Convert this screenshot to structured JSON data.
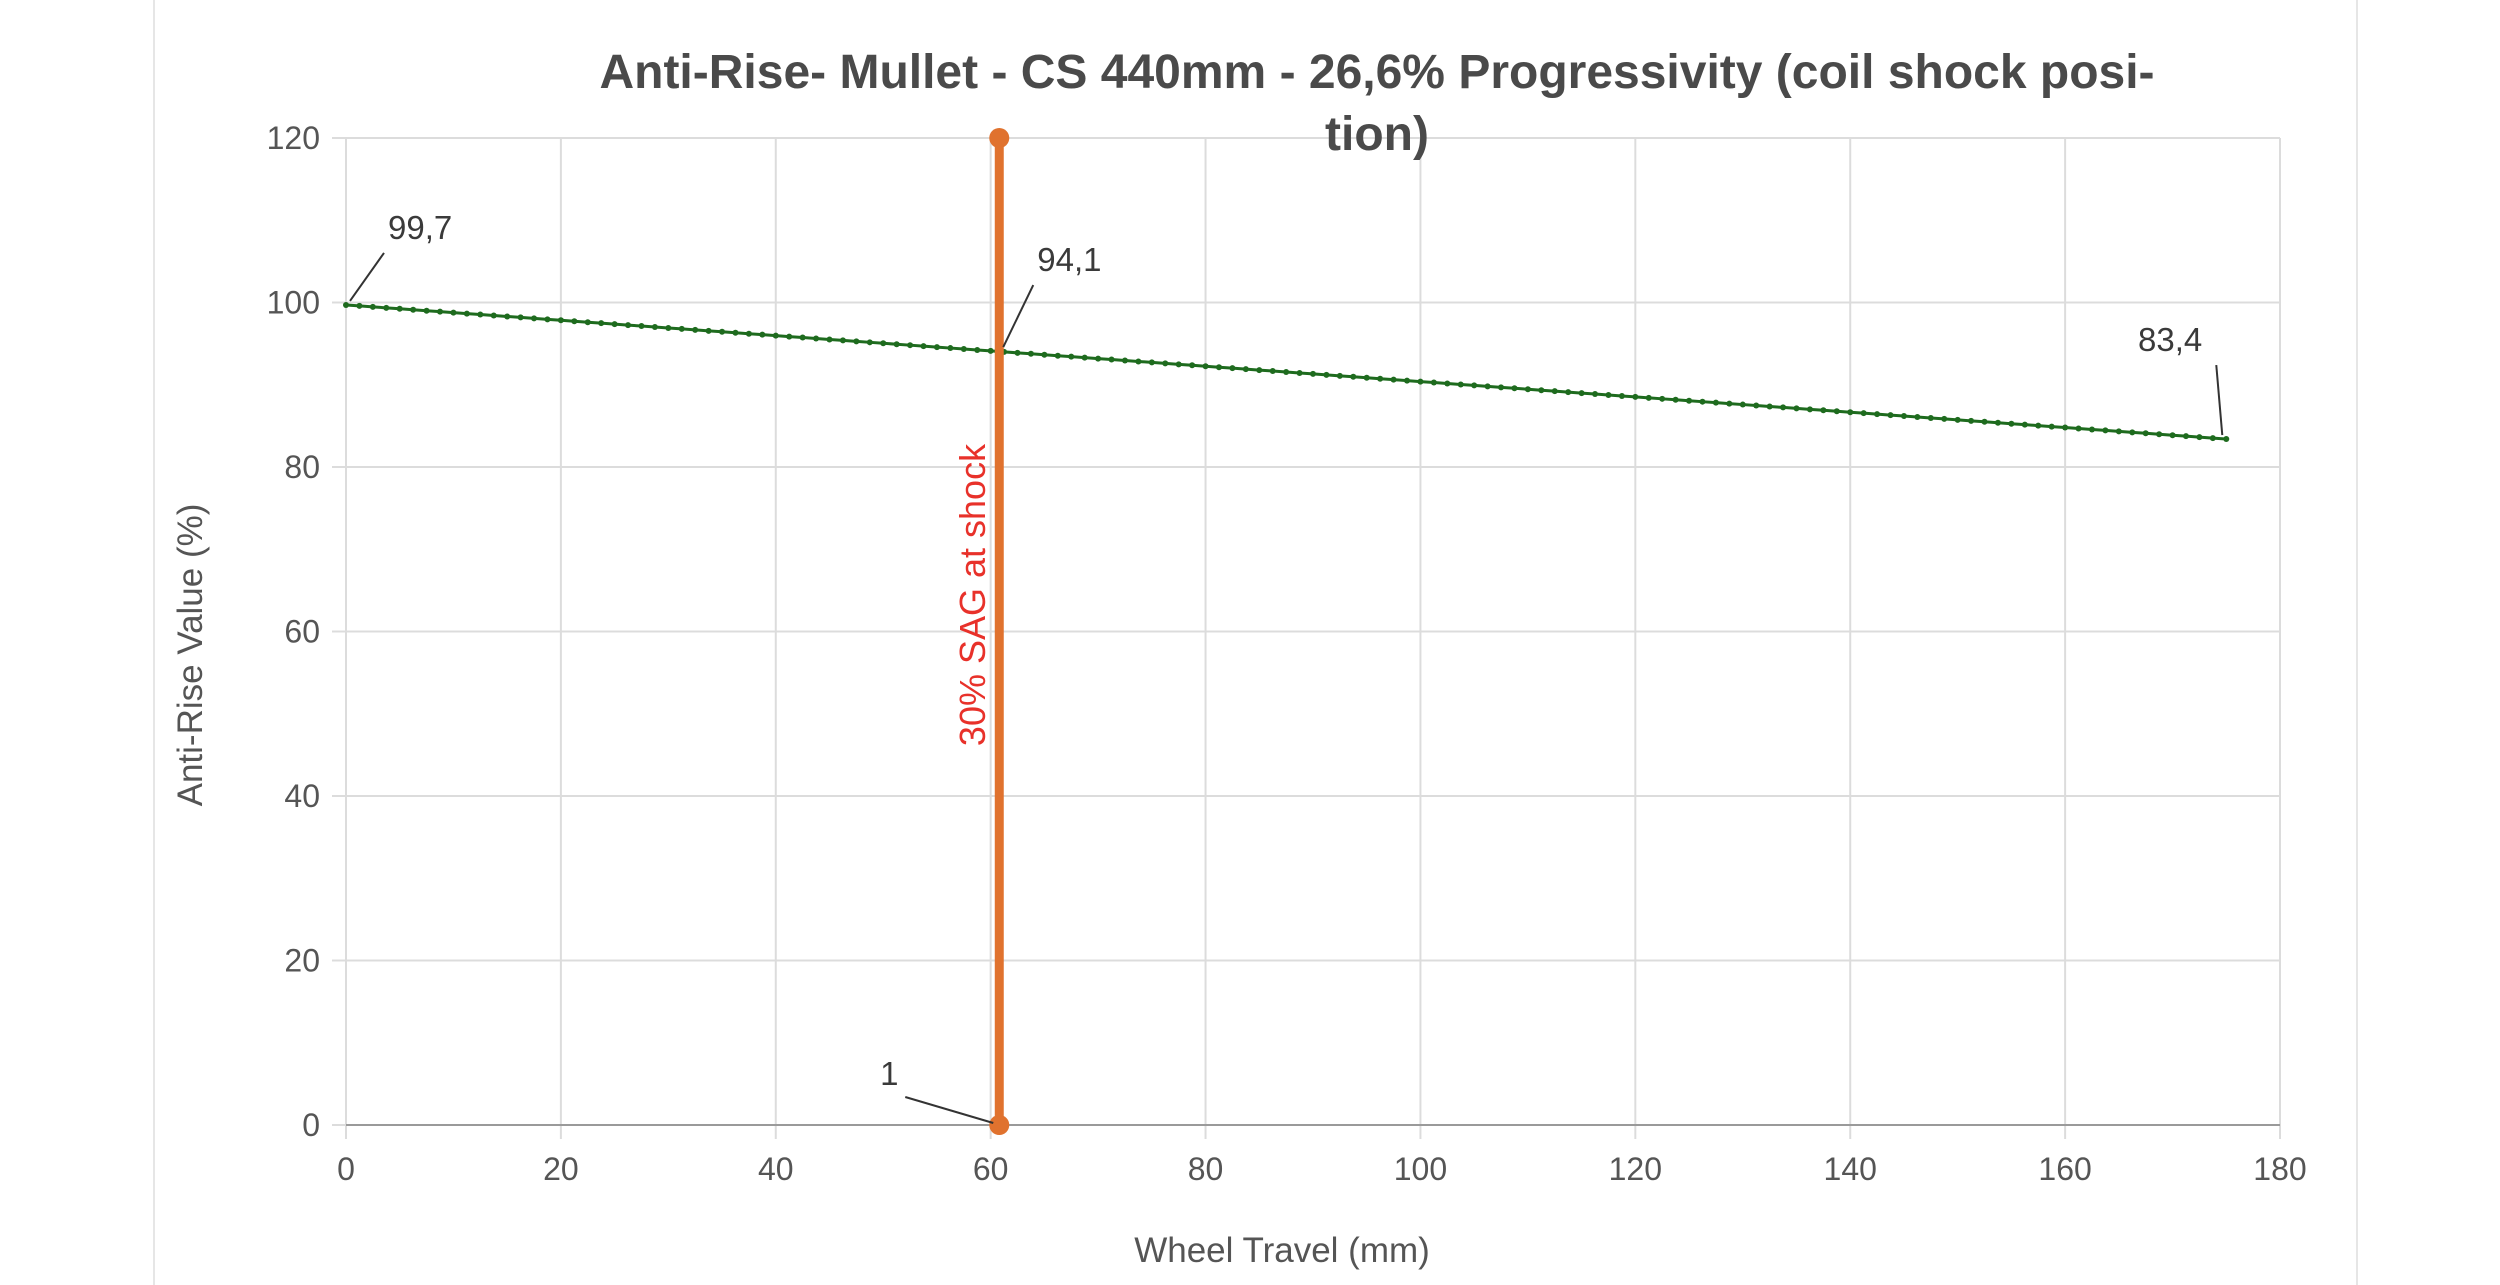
{
  "chart_data": {
    "type": "line",
    "title_lines": [
      "Anti-Rise- Mullet - CS 440mm - 26,6% Progressivity (coil shock posi-",
      "tion)"
    ],
    "xlabel": "Wheel Travel (mm)",
    "ylabel": "Anti-Rise Value (%)",
    "xlim": [
      0,
      180
    ],
    "ylim": [
      0,
      120
    ],
    "x_ticks": [
      0,
      20,
      40,
      60,
      80,
      100,
      120,
      140,
      160,
      180
    ],
    "y_ticks": [
      0,
      20,
      40,
      60,
      80,
      100,
      120
    ],
    "grid": true,
    "series": [
      {
        "color": "#1e6b1e",
        "x_start": 0,
        "x_end": 175,
        "x_step": 1.25,
        "y_start": 99.7,
        "y_end": 83.4,
        "data_labels": [
          {
            "text": "99,7",
            "x": 0,
            "y": 99.7
          },
          {
            "text": "94,1",
            "x": 60.8,
            "y": 94.1
          },
          {
            "text": "83,4",
            "x": 175,
            "y": 83.4
          }
        ]
      },
      {
        "color": "#e0722e",
        "x": [
          60.8,
          60.8
        ],
        "y": [
          0,
          120
        ],
        "data_labels": [
          {
            "text": "1",
            "x": 60.8,
            "y": 0
          }
        ]
      }
    ],
    "annotations": [
      {
        "text": "30% SAG at shock",
        "color": "#e8312a"
      }
    ]
  }
}
